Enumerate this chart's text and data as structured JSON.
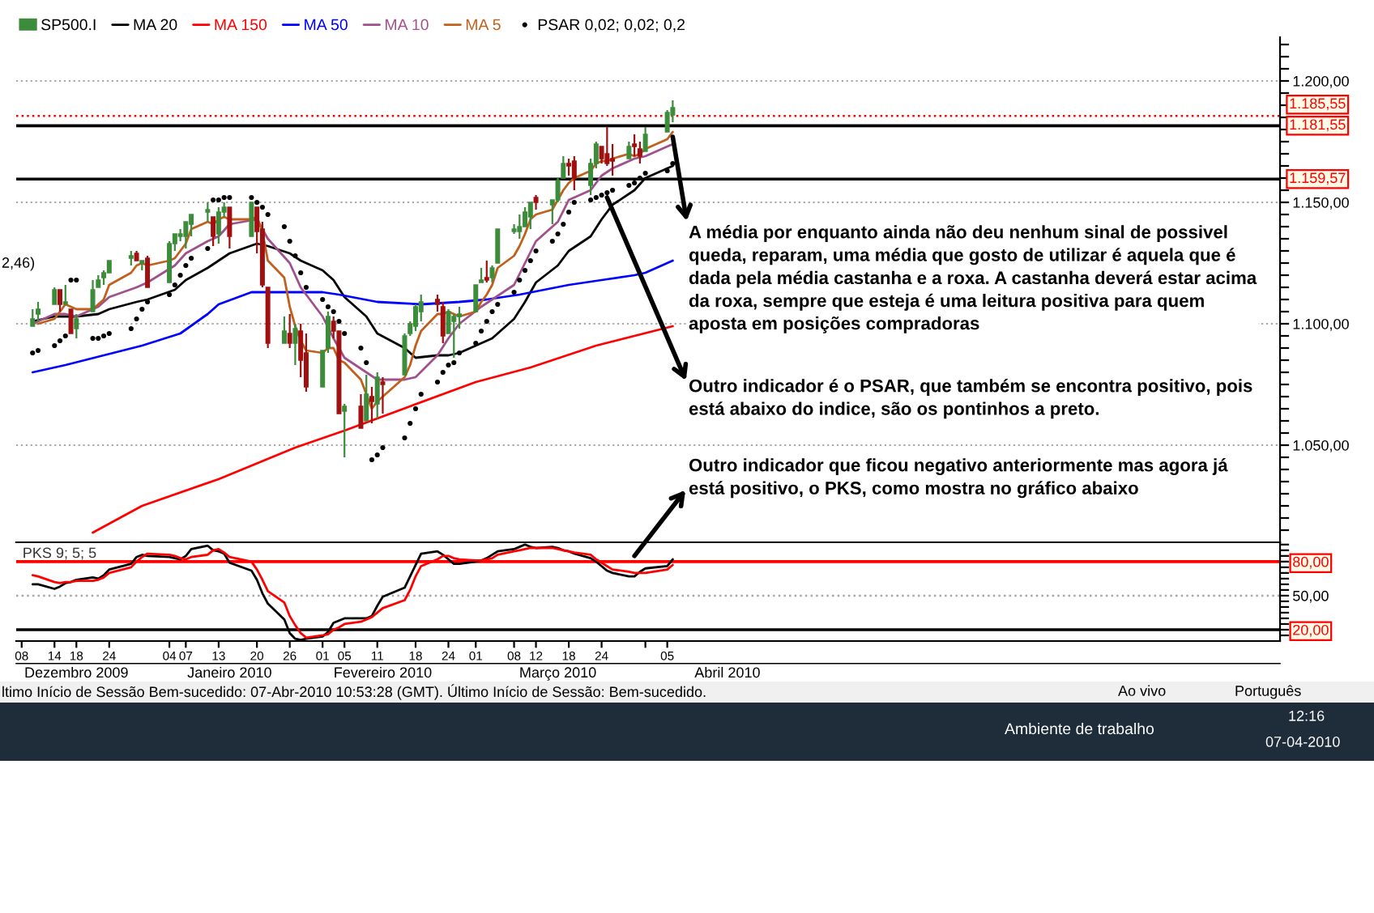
{
  "chart_data": [
    {
      "type": "candlestick",
      "xlim": [
        "2009-12-07",
        "2010-07-26"
      ],
      "ylim": [
        1010,
        1218
      ],
      "yticks": [
        {
          "value": 1015,
          "label": null
        },
        {
          "value": 1020,
          "label": null
        },
        {
          "value": 1025,
          "label": null
        },
        {
          "value": 1030,
          "label": null
        },
        {
          "value": 1035,
          "label": null
        },
        {
          "value": 1040,
          "label": null
        },
        {
          "value": 1045,
          "label": null
        },
        {
          "value": 1050,
          "label": "1.050,00"
        },
        {
          "value": 1055,
          "label": null
        },
        {
          "value": 1060,
          "label": null
        },
        {
          "value": 1065,
          "label": null
        },
        {
          "value": 1070,
          "label": null
        },
        {
          "value": 1075,
          "label": null
        },
        {
          "value": 1080,
          "label": null
        },
        {
          "value": 1085,
          "label": null
        },
        {
          "value": 1090,
          "label": null
        },
        {
          "value": 1095,
          "label": null
        },
        {
          "value": 1100,
          "label": "1.100,00"
        },
        {
          "value": 1105,
          "label": null
        },
        {
          "value": 1110,
          "label": null
        },
        {
          "value": 1115,
          "label": null
        },
        {
          "value": 1120,
          "label": null
        },
        {
          "value": 1125,
          "label": null
        },
        {
          "value": 1130,
          "label": null
        },
        {
          "value": 1135,
          "label": null
        },
        {
          "value": 1140,
          "label": null
        },
        {
          "value": 1145,
          "label": null
        },
        {
          "value": 1150,
          "label": "1.150,00"
        },
        {
          "value": 1155,
          "label": null
        },
        {
          "value": 1160,
          "label": null
        },
        {
          "value": 1165,
          "label": null
        },
        {
          "value": 1170,
          "label": null
        },
        {
          "value": 1175,
          "label": null
        },
        {
          "value": 1180,
          "label": null
        },
        {
          "value": 1185,
          "label": null
        },
        {
          "value": 1190,
          "label": null
        },
        {
          "value": 1195,
          "label": null
        },
        {
          "value": 1200,
          "label": "1.200,00"
        },
        {
          "value": 1205,
          "label": null
        },
        {
          "value": 1210,
          "label": null
        },
        {
          "value": 1215,
          "label": null
        }
      ],
      "tick_labels": "y",
      "grid": "y",
      "legend": "top left",
      "x": [
        "2009-12-10",
        "2009-12-11",
        "2009-12-14",
        "2009-12-15",
        "2009-12-16",
        "2009-12-17",
        "2009-12-18",
        "2009-12-21",
        "2009-12-22",
        "2009-12-23",
        "2009-12-24",
        "2009-12-28",
        "2009-12-29",
        "2009-12-30",
        "2009-12-31",
        "2010-01-04",
        "2010-01-05",
        "2010-01-06",
        "2010-01-07",
        "2010-01-08",
        "2010-01-11",
        "2010-01-12",
        "2010-01-13",
        "2010-01-14",
        "2010-01-15",
        "2010-01-19",
        "2010-01-20",
        "2010-01-21",
        "2010-01-22",
        "2010-01-25",
        "2010-01-26",
        "2010-01-27",
        "2010-01-28",
        "2010-01-29",
        "2010-02-01",
        "2010-02-02",
        "2010-02-03",
        "2010-02-04",
        "2010-02-05",
        "2010-02-08",
        "2010-02-09",
        "2010-02-10",
        "2010-02-11",
        "2010-02-12",
        "2010-02-16",
        "2010-02-17",
        "2010-02-18",
        "2010-02-19",
        "2010-02-22",
        "2010-02-23",
        "2010-02-24",
        "2010-02-25",
        "2010-02-26",
        "2010-03-01",
        "2010-03-02",
        "2010-03-03",
        "2010-03-04",
        "2010-03-05",
        "2010-03-08",
        "2010-03-09",
        "2010-03-10",
        "2010-03-11",
        "2010-03-12",
        "2010-03-15",
        "2010-03-16",
        "2010-03-17",
        "2010-03-18",
        "2010-03-19",
        "2010-03-22",
        "2010-03-23",
        "2010-03-24",
        "2010-03-25",
        "2010-03-26",
        "2010-03-29",
        "2010-03-30",
        "2010-03-31",
        "2010-04-01",
        "2010-04-05",
        "2010-04-06"
      ],
      "series": [
        {
          "name": "SP500.I",
          "type": "candlestick",
          "ohlc": [
            [
              1099,
              1106,
              1099,
              1102
            ],
            [
              1104,
              1109,
              1101,
              1106
            ],
            [
              1108,
              1115,
              1108,
              1114
            ],
            [
              1114,
              1114,
              1105,
              1108
            ],
            [
              1108,
              1116,
              1108,
              1109
            ],
            [
              1106,
              1106,
              1096,
              1096
            ],
            [
              1098,
              1104,
              1094,
              1102
            ],
            [
              1105,
              1118,
              1105,
              1114
            ],
            [
              1115,
              1120,
              1115,
              1118
            ],
            [
              1119,
              1122,
              1116,
              1121
            ],
            [
              1121,
              1126,
              1121,
              1126
            ],
            [
              1127,
              1130,
              1124,
              1128
            ],
            [
              1129,
              1130,
              1126,
              1126
            ],
            [
              1125,
              1126,
              1122,
              1126
            ],
            [
              1127,
              1128,
              1115,
              1115
            ],
            [
              1117,
              1134,
              1117,
              1133
            ],
            [
              1133,
              1137,
              1130,
              1137
            ],
            [
              1136,
              1139,
              1134,
              1137
            ],
            [
              1136,
              1142,
              1131,
              1142
            ],
            [
              1141,
              1145,
              1136,
              1145
            ],
            [
              1146,
              1150,
              1142,
              1147
            ],
            [
              1144,
              1144,
              1132,
              1136
            ],
            [
              1137,
              1148,
              1133,
              1146
            ],
            [
              1146,
              1150,
              1144,
              1148
            ],
            [
              1148,
              1148,
              1131,
              1136
            ],
            [
              1136,
              1150,
              1136,
              1150
            ],
            [
              1148,
              1148,
              1129,
              1138
            ],
            [
              1139,
              1142,
              1115,
              1116
            ],
            [
              1115,
              1115,
              1090,
              1092
            ],
            [
              1092,
              1103,
              1092,
              1097
            ],
            [
              1096,
              1104,
              1090,
              1092
            ],
            [
              1092,
              1100,
              1083,
              1098
            ],
            [
              1097,
              1100,
              1078,
              1085
            ],
            [
              1088,
              1096,
              1072,
              1074
            ],
            [
              1074,
              1089,
              1074,
              1089
            ],
            [
              1090,
              1105,
              1088,
              1103
            ],
            [
              1101,
              1103,
              1094,
              1097
            ],
            [
              1097,
              1097,
              1063,
              1063
            ],
            [
              1064,
              1067,
              1045,
              1066
            ],
            [
              1066,
              1071,
              1057,
              1057
            ],
            [
              1060,
              1079,
              1060,
              1071
            ],
            [
              1070,
              1074,
              1059,
              1068
            ],
            [
              1067,
              1080,
              1061,
              1078
            ],
            [
              1076,
              1078,
              1063,
              1075
            ],
            [
              1079,
              1096,
              1079,
              1095
            ],
            [
              1096,
              1101,
              1095,
              1100
            ],
            [
              1099,
              1108,
              1097,
              1107
            ],
            [
              1105,
              1112,
              1101,
              1109
            ],
            [
              1110,
              1112,
              1105,
              1108
            ],
            [
              1107,
              1109,
              1092,
              1095
            ],
            [
              1096,
              1106,
              1096,
              1105
            ],
            [
              1101,
              1104,
              1086,
              1103
            ],
            [
              1103,
              1107,
              1098,
              1104
            ],
            [
              1105,
              1116,
              1105,
              1116
            ],
            [
              1117,
              1123,
              1117,
              1118
            ],
            [
              1119,
              1126,
              1117,
              1118
            ],
            [
              1119,
              1124,
              1117,
              1123
            ],
            [
              1125,
              1139,
              1125,
              1139
            ],
            [
              1138,
              1141,
              1137,
              1139
            ],
            [
              1138,
              1145,
              1135,
              1140
            ],
            [
              1140,
              1148,
              1140,
              1146
            ],
            [
              1144,
              1150,
              1139,
              1150
            ],
            [
              1152,
              1153,
              1147,
              1150
            ],
            [
              1149,
              1151,
              1141,
              1151
            ],
            [
              1151,
              1160,
              1150,
              1159
            ],
            [
              1160,
              1169,
              1160,
              1166
            ],
            [
              1166,
              1168,
              1161,
              1165
            ],
            [
              1167,
              1169,
              1155,
              1160
            ],
            [
              1157,
              1168,
              1153,
              1166
            ],
            [
              1166,
              1175,
              1164,
              1174
            ],
            [
              1173,
              1173,
              1166,
              1168
            ],
            [
              1170,
              1181,
              1165,
              1166
            ],
            [
              1168,
              1174,
              1161,
              1167
            ],
            [
              1168,
              1175,
              1168,
              1173
            ],
            [
              1174,
              1178,
              1169,
              1173
            ],
            [
              1172,
              1175,
              1166,
              1169
            ],
            [
              1171,
              1181,
              1171,
              1178
            ],
            [
              1179,
              1188,
              1179,
              1187
            ],
            [
              1186,
              1192,
              1183,
              1189
            ]
          ],
          "colors": [
            "#3c8c3c",
            "#3c8c3c",
            "#3c8c3c",
            "#a01010",
            "#3c8c3c",
            "#a01010",
            "#3c8c3c",
            "#3c8c3c",
            "#3c8c3c",
            "#3c8c3c",
            "#3c8c3c",
            "#3c8c3c",
            "#a01010",
            "#3c8c3c",
            "#a01010",
            "#3c8c3c",
            "#3c8c3c",
            "#3c8c3c",
            "#3c8c3c",
            "#3c8c3c",
            "#3c8c3c",
            "#a01010",
            "#3c8c3c",
            "#3c8c3c",
            "#a01010",
            "#3c8c3c",
            "#a01010",
            "#a01010",
            "#a01010",
            "#3c8c3c",
            "#a01010",
            "#3c8c3c",
            "#a01010",
            "#a01010",
            "#3c8c3c",
            "#3c8c3c",
            "#a01010",
            "#a01010",
            "#3c8c3c",
            "#a01010",
            "#3c8c3c",
            "#a01010",
            "#3c8c3c",
            "#a01010",
            "#3c8c3c",
            "#3c8c3c",
            "#3c8c3c",
            "#3c8c3c",
            "#a01010",
            "#a01010",
            "#3c8c3c",
            "#3c8c3c",
            "#3c8c3c",
            "#3c8c3c",
            "#3c8c3c",
            "#a01010",
            "#3c8c3c",
            "#3c8c3c",
            "#3c8c3c",
            "#3c8c3c",
            "#3c8c3c",
            "#3c8c3c",
            "#a01010",
            "#3c8c3c",
            "#3c8c3c",
            "#3c8c3c",
            "#a01010",
            "#a01010",
            "#3c8c3c",
            "#3c8c3c",
            "#a01010",
            "#a01010",
            "#a01010",
            "#3c8c3c",
            "#a01010",
            "#a01010",
            "#3c8c3c",
            "#3c8c3c",
            "#3c8c3c"
          ]
        },
        {
          "name": "MA 20",
          "type": "line",
          "color": "#000000",
          "x": [
            "2009-12-10",
            "2009-12-14",
            "2009-12-16",
            "2009-12-18",
            "2009-12-22",
            "2009-12-24",
            "2009-12-29",
            "2009-12-31",
            "2010-01-05",
            "2010-01-07",
            "2010-01-11",
            "2010-01-13",
            "2010-01-15",
            "2010-01-20",
            "2010-01-22",
            "2010-01-26",
            "2010-01-28",
            "2010-02-01",
            "2010-02-03",
            "2010-02-05",
            "2010-02-09",
            "2010-02-11",
            "2010-02-16",
            "2010-02-18",
            "2010-02-22",
            "2010-02-24",
            "2010-02-26",
            "2010-03-02",
            "2010-03-04",
            "2010-03-08",
            "2010-03-10",
            "2010-03-12",
            "2010-03-16",
            "2010-03-18",
            "2010-03-22",
            "2010-03-24",
            "2010-03-26",
            "2010-03-30",
            "2010-04-01",
            "2010-04-06"
          ],
          "values": [
            1101,
            1103,
            1103,
            1103,
            1104,
            1106,
            1109,
            1110,
            1114,
            1118,
            1123,
            1126,
            1129,
            1133,
            1132,
            1129,
            1126,
            1122,
            1118,
            1111,
            1103,
            1096,
            1090,
            1086,
            1087,
            1087,
            1088,
            1092,
            1094,
            1102,
            1109,
            1117,
            1124,
            1130,
            1136,
            1143,
            1149,
            1155,
            1160,
            1165
          ]
        },
        {
          "name": "MA 150",
          "type": "line",
          "color": "#ff0000",
          "x": [
            "2009-12-21",
            "2009-12-30",
            "2010-01-13",
            "2010-01-27",
            "2010-02-05",
            "2010-02-17",
            "2010-03-01",
            "2010-03-11",
            "2010-03-23",
            "2010-04-06"
          ],
          "values": [
            1014,
            1025,
            1036,
            1049,
            1056,
            1066,
            1076,
            1082,
            1091,
            1099
          ]
        },
        {
          "name": "MA 50",
          "type": "line",
          "color": "#0000ff",
          "x": [
            "2009-12-10",
            "2009-12-16",
            "2009-12-23",
            "2009-12-30",
            "2010-01-06",
            "2010-01-11",
            "2010-01-13",
            "2010-01-19",
            "2010-01-26",
            "2010-02-01",
            "2010-02-04",
            "2010-02-11",
            "2010-02-19",
            "2010-02-26",
            "2010-03-03",
            "2010-03-09",
            "2010-03-18",
            "2010-03-24",
            "2010-03-30",
            "2010-04-01",
            "2010-04-06"
          ],
          "values": [
            1080,
            1083,
            1087,
            1091,
            1096,
            1104,
            1108,
            1113,
            1113,
            1113,
            1112,
            1109,
            1108,
            1109,
            1110,
            1112,
            1116,
            1118,
            1120,
            1121,
            1126
          ]
        },
        {
          "name": "MA 10",
          "type": "line",
          "color": "#a0508c",
          "x": [
            "2009-12-10",
            "2009-12-14",
            "2009-12-16",
            "2009-12-18",
            "2009-12-22",
            "2009-12-24",
            "2009-12-29",
            "2009-12-31",
            "2010-01-05",
            "2010-01-07",
            "2010-01-11",
            "2010-01-13",
            "2010-01-15",
            "2010-01-20",
            "2010-01-22",
            "2010-01-26",
            "2010-01-28",
            "2010-02-01",
            "2010-02-03",
            "2010-02-05",
            "2010-02-09",
            "2010-02-11",
            "2010-02-16",
            "2010-02-18",
            "2010-02-22",
            "2010-02-24",
            "2010-02-26",
            "2010-03-02",
            "2010-03-04",
            "2010-03-08",
            "2010-03-10",
            "2010-03-12",
            "2010-03-16",
            "2010-03-18",
            "2010-03-22",
            "2010-03-24",
            "2010-03-26",
            "2010-03-30",
            "2010-04-01",
            "2010-04-06"
          ],
          "values": [
            1100,
            1104,
            1104,
            1103,
            1107,
            1111,
            1115,
            1117,
            1124,
            1129,
            1134,
            1136,
            1141,
            1143,
            1135,
            1125,
            1115,
            1103,
            1094,
            1086,
            1080,
            1077,
            1077,
            1078,
            1087,
            1094,
            1100,
            1107,
            1110,
            1116,
            1125,
            1134,
            1142,
            1151,
            1155,
            1161,
            1164,
            1168,
            1169,
            1174
          ]
        },
        {
          "name": "MA 5",
          "type": "line",
          "color": "#c0601c",
          "values": [
            null,
            1100,
            1102,
            1105,
            1108,
            1107,
            1106,
            1106,
            1108,
            1110,
            1116,
            1121,
            1124,
            1125,
            1124,
            1126,
            1127,
            1130,
            1133,
            1139,
            1142,
            1141,
            1143,
            1144,
            1143,
            1143,
            1144,
            1138,
            1126,
            1119,
            1107,
            1099,
            1093,
            1089,
            1088,
            1090,
            1090,
            1085,
            1084,
            1077,
            1071,
            1065,
            1068,
            1070,
            1078,
            1083,
            1091,
            1097,
            1104,
            1104,
            1105,
            1104,
            1103,
            1105,
            1109,
            1112,
            1116,
            1123,
            1128,
            1132,
            1137,
            1143,
            1145,
            1147,
            1151,
            1155,
            1158,
            1160,
            1163,
            1166,
            1167,
            1167,
            1168,
            1170,
            1169,
            1170,
            1172,
            1176,
            1179
          ]
        },
        {
          "name": "PSAR 0,02; 0,02; 0,2",
          "type": "scatter",
          "color": "#000000",
          "marker": "circle",
          "values": [
            1088,
            1089,
            1091,
            1093,
            1095,
            1118,
            1118,
            1094,
            1094,
            1095,
            1096,
            1098,
            1102,
            1106,
            1109,
            1112,
            1116,
            1120,
            1124,
            1127,
            1131,
            1151,
            1151,
            1152,
            1152,
            1152,
            1150,
            1148,
            1145,
            1140,
            1134,
            1128,
            1121,
            1115,
            1110,
            1107,
            1105,
            1101,
            1096,
            1090,
            1084,
            1044,
            1046,
            1049,
            1053,
            1059,
            1065,
            1071,
            1076,
            1080,
            1083,
            1084,
            1088,
            1092,
            1097,
            1101,
            1105,
            1108,
            1113,
            1118,
            1122,
            1126,
            1130,
            1134,
            1137,
            1141,
            1146,
            1150,
            1151,
            1152,
            1153,
            1154,
            1155,
            1157,
            1158,
            1160,
            1162,
            1163,
            1166
          ]
        }
      ],
      "ref_lines": [
        {
          "axis": "y",
          "value": 1185.55,
          "label": "1.185,55",
          "color": "#ff0000",
          "line_style": "dotted"
        },
        {
          "axis": "y",
          "value": 1181.55,
          "label": "1.181,55",
          "color": "#000000"
        },
        {
          "axis": "y",
          "value": 1159.57,
          "label": "1.159,57",
          "color": "#000000"
        }
      ],
      "annotations": [
        {
          "text": "A média por enquanto ainda não deu nenhum sinal de possivel\nqueda, reparam, uma média que gosto de utilizar é aquela que é\ndada pela média castanha e a roxa. A castanha deverá estar acima\nda roxa, sempre que esteja é uma leitura positiva para quem\naposta em posições compradoras",
          "x": "2010-04-06",
          "y": 1177
        },
        {
          "text": "Outro indicador é o PSAR, que também se encontra positivo, pois\nestá abaixo do indice, são os pontinhos a preto.",
          "x": "2010-03-25",
          "y": 1152
        },
        "2,46)"
      ]
    },
    {
      "type": "line",
      "title": "PKS 9; 5; 5",
      "xlim": [
        "2009-12-07",
        "2010-07-26"
      ],
      "x2lim": [
        "2009-12-07",
        "2010-07-26"
      ],
      "ylim": [
        10,
        97
      ],
      "x": [
        "2009-12-10",
        "2009-12-11",
        "2009-12-14",
        "2009-12-15",
        "2009-12-16",
        "2009-12-17",
        "2009-12-18",
        "2009-12-21",
        "2009-12-22",
        "2009-12-23",
        "2009-12-24",
        "2009-12-28",
        "2009-12-29",
        "2009-12-30",
        "2009-12-31",
        "2010-01-04",
        "2010-01-05",
        "2010-01-06",
        "2010-01-07",
        "2010-01-08",
        "2010-01-11",
        "2010-01-12",
        "2010-01-13",
        "2010-01-14",
        "2010-01-15",
        "2010-01-19",
        "2010-01-20",
        "2010-01-21",
        "2010-01-22",
        "2010-01-25",
        "2010-01-26",
        "2010-01-27",
        "2010-01-28",
        "2010-01-29",
        "2010-02-01",
        "2010-02-02",
        "2010-02-03",
        "2010-02-04",
        "2010-02-05",
        "2010-02-08",
        "2010-02-09",
        "2010-02-10",
        "2010-02-11",
        "2010-02-12",
        "2010-02-16",
        "2010-02-17",
        "2010-02-18",
        "2010-02-19",
        "2010-02-22",
        "2010-02-23",
        "2010-02-24",
        "2010-02-25",
        "2010-02-26",
        "2010-03-01",
        "2010-03-02",
        "2010-03-03",
        "2010-03-04",
        "2010-03-05",
        "2010-03-08",
        "2010-03-09",
        "2010-03-10",
        "2010-03-11",
        "2010-03-12",
        "2010-03-15",
        "2010-03-16",
        "2010-03-17",
        "2010-03-18",
        "2010-03-19",
        "2010-03-22",
        "2010-03-23",
        "2010-03-24",
        "2010-03-25",
        "2010-03-26",
        "2010-03-29",
        "2010-03-30",
        "2010-03-31",
        "2010-04-01",
        "2010-04-05",
        "2010-04-06"
      ],
      "xticks": [
        {
          "value": "2009-12-08",
          "label": "08"
        },
        {
          "value": "2009-12-14",
          "label": "14"
        },
        {
          "value": "2009-12-18",
          "label": "18"
        },
        {
          "value": "2009-12-24",
          "label": "24"
        },
        {
          "value": "2010-01-04",
          "label": "04"
        },
        {
          "value": "2010-01-07",
          "label": "07"
        },
        {
          "value": "2010-01-13",
          "label": "13"
        },
        {
          "value": "2010-01-20",
          "label": "20"
        },
        {
          "value": "2010-01-26",
          "label": "26"
        },
        {
          "value": "2010-02-01",
          "label": "01"
        },
        {
          "value": "2010-02-05",
          "label": "05"
        },
        {
          "value": "2010-02-11",
          "label": "11"
        },
        {
          "value": "2010-02-18",
          "label": "18"
        },
        {
          "value": "2010-02-24",
          "label": "24"
        },
        {
          "value": "2010-03-01",
          "label": "01"
        },
        {
          "value": "2010-03-08",
          "label": "08"
        },
        {
          "value": "2010-03-12",
          "label": "12"
        },
        {
          "value": "2010-03-18",
          "label": "18"
        },
        {
          "value": "2010-03-24",
          "label": "24"
        },
        {
          "value": "2010-04-01",
          "label": null
        },
        {
          "value": "2010-04-05",
          "label": "05"
        }
      ],
      "x2ticks": [
        {
          "value": "2009-12-18",
          "label": "Dezembro 2009"
        },
        {
          "value": "2010-01-15",
          "label": "Janeiro 2010"
        },
        {
          "value": "2010-02-12",
          "label": "Fevereiro 2010"
        },
        {
          "value": "2010-03-16",
          "label": "Março 2010"
        },
        {
          "value": "2010-04-16",
          "label": "Abril 2010"
        }
      ],
      "yticks": [
        {
          "value": 15,
          "label": null
        },
        {
          "value": 20,
          "label": "20,00"
        },
        {
          "value": 25,
          "label": null
        },
        {
          "value": 30,
          "label": null
        },
        {
          "value": 35,
          "label": null
        },
        {
          "value": 40,
          "label": null
        },
        {
          "value": 45,
          "label": null
        },
        {
          "value": 50,
          "label": "50,00"
        },
        {
          "value": 55,
          "label": null
        },
        {
          "value": 60,
          "label": null
        },
        {
          "value": 65,
          "label": null
        },
        {
          "value": 70,
          "label": null
        },
        {
          "value": 75,
          "label": null
        },
        {
          "value": 80,
          "label": "80,00"
        },
        {
          "value": 85,
          "label": null
        },
        {
          "value": 90,
          "label": null
        },
        {
          "value": 95,
          "label": null
        }
      ],
      "series": [
        {
          "color": "#000000",
          "values": [
            60,
            60,
            56,
            58,
            61,
            62,
            64,
            66,
            65,
            68,
            73,
            78,
            84,
            86,
            85,
            84,
            83,
            82,
            85,
            91,
            94,
            90,
            89,
            87,
            79,
            72,
            64,
            52,
            43,
            29,
            17,
            12,
            11,
            12,
            14,
            18,
            26,
            28,
            30,
            30,
            30,
            32,
            41,
            49,
            57,
            67,
            77,
            87,
            89,
            86,
            82,
            78,
            78,
            80,
            81,
            83,
            86,
            89,
            91,
            93,
            95,
            93,
            92,
            93,
            92,
            90,
            89,
            87,
            83,
            80,
            76,
            72,
            70,
            67,
            67,
            71,
            74,
            76,
            82
          ]
        },
        {
          "color": "#ff0000",
          "values": [
            68,
            67,
            62,
            61,
            62,
            62,
            63,
            63,
            64,
            66,
            70,
            75,
            80,
            84,
            87,
            86,
            85,
            83,
            82,
            84,
            86,
            90,
            91,
            88,
            84,
            80,
            73,
            64,
            54,
            44,
            32,
            24,
            17,
            13,
            15,
            16,
            20,
            22,
            25,
            27,
            29,
            31,
            35,
            39,
            46,
            55,
            67,
            76,
            82,
            85,
            85,
            83,
            82,
            81,
            81,
            82,
            83,
            86,
            89,
            90,
            91,
            92,
            92,
            92,
            91,
            90,
            89,
            88,
            86,
            82,
            79,
            76,
            73,
            71,
            70,
            70,
            70,
            73,
            77
          ]
        }
      ],
      "ref_lines": [
        {
          "axis": "y",
          "value": 80,
          "color": "#ff0000"
        },
        {
          "axis": "y",
          "value": 50,
          "color": "#a8a8a8",
          "line_style": "dotted"
        },
        {
          "axis": "y",
          "value": 20,
          "color": "#000000"
        }
      ],
      "annotations": [
        {
          "text": "Outro indicador que ficou negativo anteriormente mas agora já\nestá positivo, o PKS, como mostra no gráfico abaixo",
          "x": "2010-03-30",
          "y": 85
        },
        "ltimo Início de Sessão Bem-sucedido: 07-Abr-2010 10:53:28 (GMT). Último Início de Sessão: Bem-sucedido.",
        "Ao vivo",
        "Português",
        "Ambiente de trabalho",
        "12:16",
        "07-04-2010"
      ]
    }
  ]
}
